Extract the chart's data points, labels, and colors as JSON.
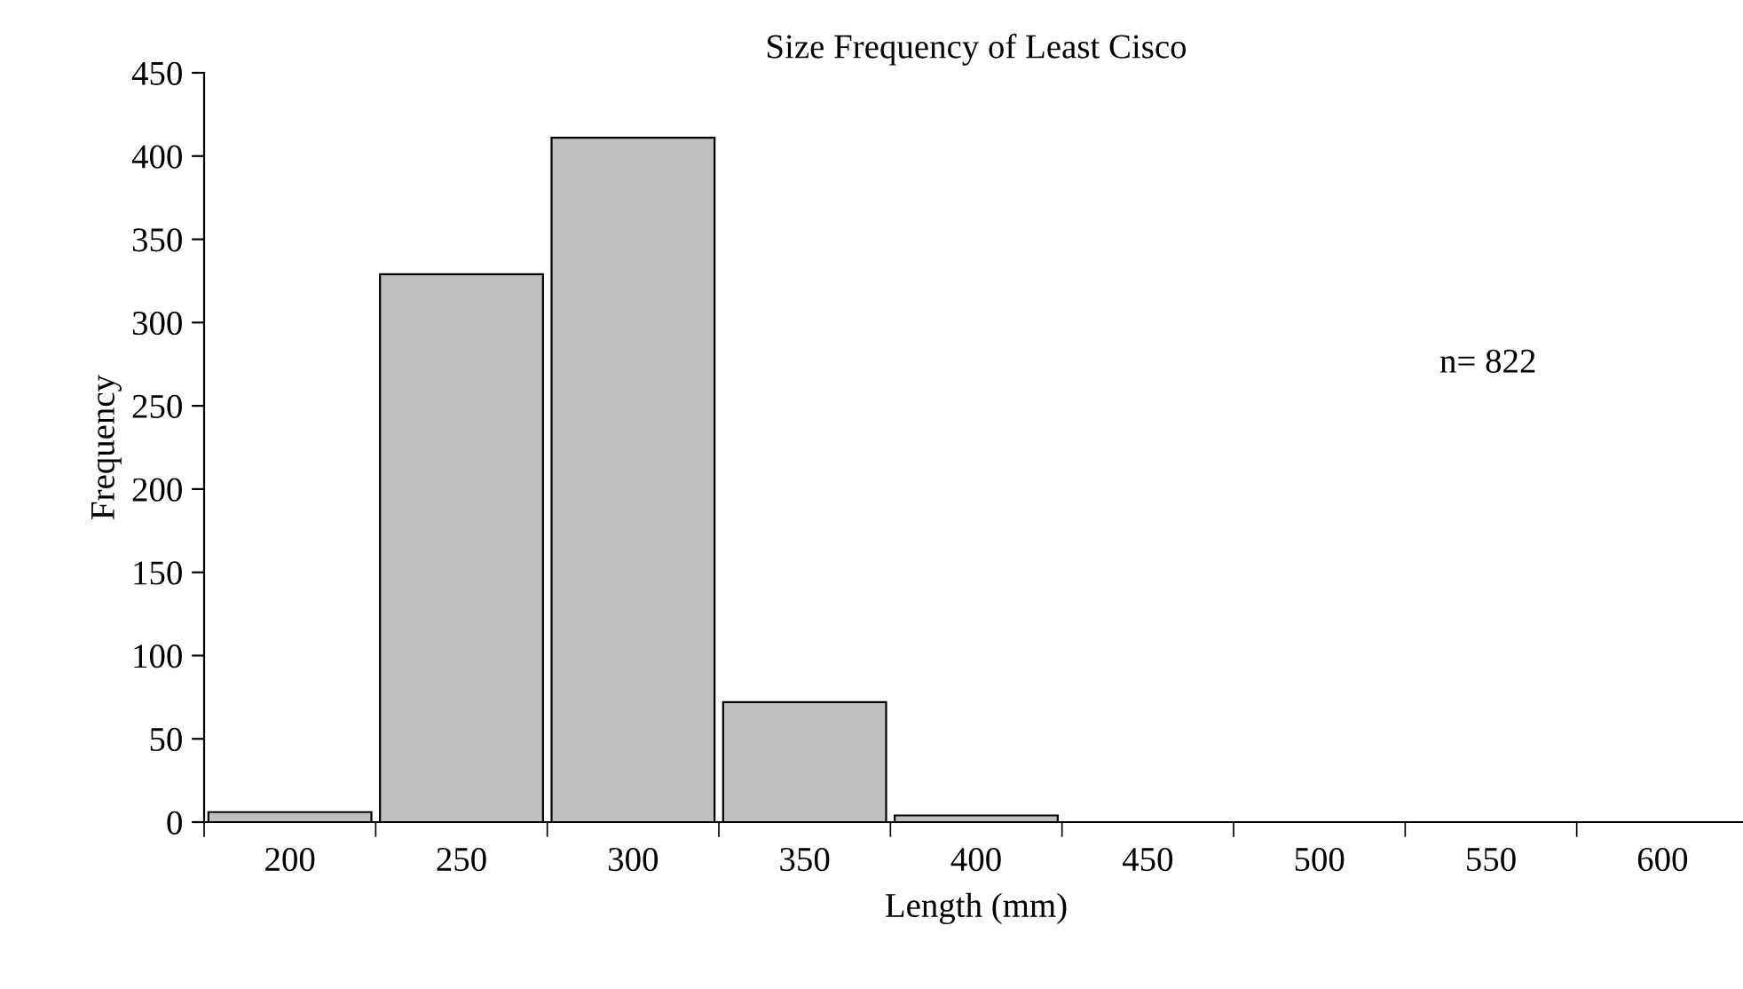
{
  "chart_data": {
    "type": "bar",
    "title": "Size Frequency of Least Cisco",
    "xlabel": "Length (mm)",
    "ylabel": "Frequency",
    "categories": [
      "200",
      "250",
      "300",
      "350",
      "400",
      "450",
      "500",
      "550",
      "600"
    ],
    "values": [
      6,
      329,
      411,
      72,
      4,
      0,
      0,
      0,
      0
    ],
    "color": "#c0c0c0",
    "ylim": [
      0,
      450
    ],
    "yticks": [
      0,
      50,
      100,
      150,
      200,
      250,
      300,
      350,
      400,
      450
    ],
    "annotations": [
      "n= 822"
    ],
    "grid": false,
    "legend": false
  }
}
